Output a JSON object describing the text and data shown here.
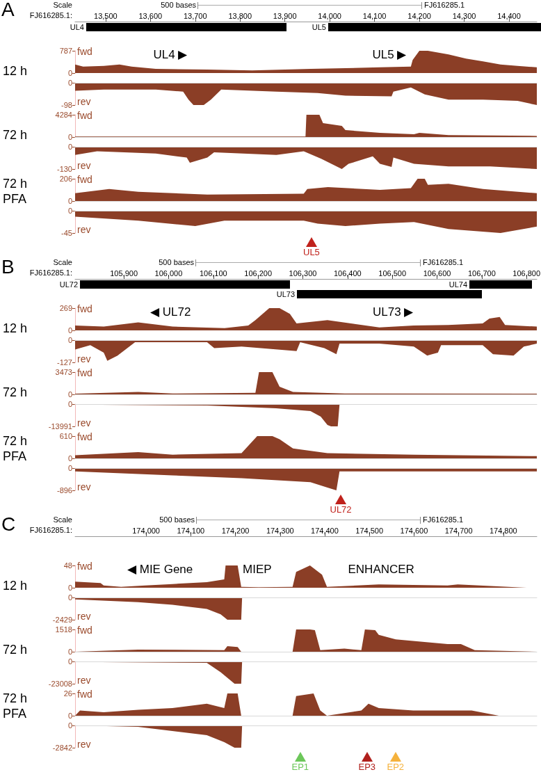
{
  "chart_data": [
    {
      "type": "area",
      "title": "12 h",
      "ylabel": "fwd",
      "color": "#8b3e26",
      "xlim": [
        13432,
        14462
      ],
      "xticks": [
        {
          "value": 13500,
          "label": "13,500"
        },
        {
          "value": 13600,
          "label": "13,600"
        },
        {
          "value": 13700,
          "label": "13,700"
        },
        {
          "value": 13800,
          "label": "13,800"
        },
        {
          "value": 13900,
          "label": "13,900"
        },
        {
          "value": 14000,
          "label": "14,000"
        },
        {
          "value": 14100,
          "label": "14,100"
        },
        {
          "value": 14200,
          "label": "14,200"
        },
        {
          "value": 14300,
          "label": "14,300"
        },
        {
          "value": 14400,
          "label": "14,400"
        }
      ],
      "ylim": [
        0,
        787
      ],
      "yticks": [
        0,
        787
      ],
      "annotations": [
        "A",
        "Scale",
        "500 bases",
        "FJ616285.1",
        "FJ616285.1:",
        "UL4",
        "UL5",
        "UL4 ▶",
        "UL5 ▶"
      ],
      "x": [
        13432,
        13450,
        13496,
        13531,
        13558,
        13612,
        13727,
        13827,
        13958,
        14035,
        14112,
        14181,
        14185,
        14200,
        14208,
        14219,
        14265,
        14304,
        14342,
        14381,
        14419,
        14462
      ],
      "values": [
        300,
        225,
        255,
        300,
        225,
        150,
        120,
        90,
        150,
        170,
        200,
        225,
        460,
        787,
        787,
        787,
        660,
        510,
        410,
        300,
        255,
        200
      ]
    },
    {
      "type": "area",
      "ylabel": "rev",
      "color": "#8b3e26",
      "xlim": [
        13432,
        14462
      ],
      "ylim": [
        -98,
        0
      ],
      "yticks": [
        0,
        -98
      ],
      "tick_labels": "y",
      "x": [
        13432,
        13496,
        13612,
        13673,
        13685,
        13696,
        13719,
        13735,
        13758,
        13881,
        13973,
        14035,
        14138,
        14142,
        14181,
        14212,
        14265,
        14342,
        14419,
        14462
      ],
      "values": [
        -35,
        -30,
        -30,
        -39,
        -74,
        -98,
        -98,
        -74,
        -30,
        -39,
        -45,
        -57,
        -60,
        -39,
        -21,
        -51,
        -74,
        -74,
        -80,
        -98
      ]
    },
    {
      "type": "area",
      "title": "72 h",
      "ylabel": "fwd",
      "color": "#8b3e26",
      "xlim": [
        13432,
        14462
      ],
      "ylim": [
        0,
        4284
      ],
      "yticks": [
        0,
        4284
      ],
      "tick_labels": "y",
      "x": [
        13432,
        13881,
        13946,
        13948,
        13977,
        13985,
        14027,
        14035,
        14112,
        14188,
        14200,
        14265,
        14462
      ],
      "values": [
        100,
        100,
        100,
        4284,
        4284,
        2680,
        2140,
        1340,
        800,
        540,
        800,
        375,
        215
      ]
    },
    {
      "type": "area",
      "ylabel": "rev",
      "color": "#8b3e26",
      "xlim": [
        13432,
        14462
      ],
      "ylim": [
        -130,
        0
      ],
      "yticks": [
        0,
        -130
      ],
      "tick_labels": "y",
      "x": [
        13432,
        13481,
        13612,
        13681,
        13688,
        13727,
        13742,
        13881,
        13942,
        13981,
        14027,
        14042,
        14096,
        14112,
        14138,
        14142,
        14188,
        14265,
        14358,
        14462
      ],
      "values": [
        -48,
        -26,
        -40,
        -63,
        -93,
        -63,
        -33,
        -48,
        -26,
        -70,
        -130,
        -100,
        -56,
        -100,
        -118,
        -63,
        -100,
        -115,
        -115,
        -130
      ]
    },
    {
      "type": "area",
      "title": "72 h PFA",
      "ylabel": "fwd",
      "color": "#8b3e26",
      "xlim": [
        13432,
        14462
      ],
      "ylim": [
        0,
        206
      ],
      "yticks": [
        0,
        206
      ],
      "tick_labels": "y",
      "x": [
        13432,
        13508,
        13573,
        13727,
        13942,
        13950,
        13996,
        14112,
        14181,
        14196,
        14212,
        14219,
        14265,
        14342,
        14462
      ],
      "values": [
        72,
        111,
        85,
        59,
        67,
        111,
        129,
        103,
        119,
        206,
        206,
        150,
        160,
        111,
        72
      ]
    },
    {
      "type": "area",
      "ylabel": "rev",
      "color": "#8b3e26",
      "xlim": [
        13432,
        14462
      ],
      "ylim": [
        -45,
        0
      ],
      "yticks": [
        0,
        -45
      ],
      "tick_labels": "y",
      "annotations": [
        "UL5"
      ],
      "x": [
        13432,
        13573,
        13700,
        13765,
        13942,
        13973,
        14035,
        14112,
        14188,
        14265,
        14381,
        14462
      ],
      "values": [
        -12,
        -20,
        -31,
        -20,
        -20,
        -26,
        -31,
        -26,
        -23,
        -37,
        -45,
        -32
      ]
    },
    {
      "type": "area",
      "title": "12 h",
      "ylabel": "fwd",
      "color": "#8b3e26",
      "xlim": [
        105791,
        106823
      ],
      "xticks": [
        {
          "value": 105900,
          "label": "105,900"
        },
        {
          "value": 106000,
          "label": "106,000"
        },
        {
          "value": 106100,
          "label": "106,100"
        },
        {
          "value": 106200,
          "label": "106,200"
        },
        {
          "value": 106300,
          "label": "106,300"
        },
        {
          "value": 106400,
          "label": "106,400"
        },
        {
          "value": 106500,
          "label": "106,500"
        },
        {
          "value": 106600,
          "label": "106,600"
        },
        {
          "value": 106700,
          "label": "106,700"
        },
        {
          "value": 106800,
          "label": "106,800"
        }
      ],
      "ylim": [
        0,
        269
      ],
      "yticks": [
        0,
        269
      ],
      "annotations": [
        "B",
        "Scale",
        "500 bases",
        "FJ616285.1",
        "FJ616285.1:",
        "UL72",
        "UL74",
        "UL73",
        "◀ UL72",
        "UL73 ▶"
      ],
      "x": [
        105791,
        105855,
        105932,
        106009,
        106125,
        106178,
        106194,
        106225,
        106248,
        106271,
        106286,
        106355,
        106471,
        106548,
        106625,
        106702,
        106717,
        106740,
        106752,
        106823
      ],
      "values": [
        58,
        46,
        96,
        46,
        27,
        58,
        123,
        269,
        269,
        200,
        84,
        123,
        35,
        58,
        65,
        84,
        142,
        161,
        65,
        46
      ]
    },
    {
      "type": "area",
      "ylabel": "rev",
      "color": "#8b3e26",
      "xlim": [
        105791,
        106823
      ],
      "ylim": [
        -127,
        0
      ],
      "yticks": [
        0,
        -127
      ],
      "tick_labels": "y",
      "x": [
        105791,
        105825,
        105855,
        105863,
        105886,
        105925,
        106086,
        106102,
        106163,
        106286,
        106294,
        106348,
        106375,
        106382,
        106471,
        106548,
        106578,
        106602,
        106609,
        106702,
        106725,
        106771,
        106794,
        106823
      ],
      "values": [
        -54,
        -29,
        -71,
        -118,
        -88,
        -12,
        -12,
        -46,
        -37,
        -63,
        -12,
        -46,
        -80,
        -20,
        -20,
        -37,
        -88,
        -71,
        -29,
        -29,
        -80,
        -88,
        -37,
        -20
      ]
    },
    {
      "type": "area",
      "title": "72 h",
      "ylabel": "fwd",
      "color": "#8b3e26",
      "xlim": [
        105791,
        106823
      ],
      "ylim": [
        0,
        3473
      ],
      "yticks": [
        0,
        3473
      ],
      "tick_labels": "y",
      "x": [
        105791,
        105932,
        106009,
        106194,
        106202,
        106232,
        106248,
        106278,
        106394,
        106823
      ],
      "values": [
        95,
        380,
        140,
        240,
        3473,
        3473,
        1190,
        380,
        140,
        95
      ]
    },
    {
      "type": "area",
      "ylabel": "rev",
      "color": "#8b3e26",
      "xlim": [
        105791,
        106823
      ],
      "ylim": [
        -13991,
        0
      ],
      "yticks": [
        0,
        -13991
      ],
      "tick_labels": "y",
      "x": [
        105791,
        106086,
        106240,
        106317,
        106340,
        106355,
        106363,
        106378,
        106382,
        106823
      ],
      "values": [
        -350,
        -875,
        -2620,
        -4370,
        -7870,
        -13120,
        -13991,
        -13991,
        -350,
        -100
      ]
    },
    {
      "type": "area",
      "title": "72 h PFA",
      "ylabel": "fwd",
      "color": "#8b3e26",
      "xlim": [
        105791,
        106823
      ],
      "ylim": [
        0,
        610
      ],
      "yticks": [
        0,
        610
      ],
      "tick_labels": "y",
      "x": [
        105791,
        105932,
        106009,
        106163,
        106198,
        106232,
        106248,
        106278,
        106355,
        106548,
        106823
      ],
      "values": [
        85,
        170,
        100,
        144,
        610,
        610,
        525,
        271,
        144,
        100,
        60
      ]
    },
    {
      "type": "area",
      "ylabel": "rev",
      "color": "#8b3e26",
      "xlim": [
        105791,
        106823
      ],
      "ylim": [
        -896,
        0
      ],
      "yticks": [
        0,
        -896
      ],
      "tick_labels": "y",
      "annotations": [
        "UL72"
      ],
      "x": [
        105791,
        106009,
        106163,
        106317,
        106355,
        106375,
        106382,
        106548,
        106823
      ],
      "values": [
        -130,
        -294,
        -403,
        -567,
        -785,
        -896,
        -130,
        -130,
        -130
      ]
    },
    {
      "type": "area",
      "title": "12 h",
      "ylabel": "fwd",
      "color": "#8b3e26",
      "xlim": [
        173841,
        174875
      ],
      "xticks": [
        {
          "value": 174000,
          "label": "174,000"
        },
        {
          "value": 174100,
          "label": "174,100"
        },
        {
          "value": 174200,
          "label": "174,200"
        },
        {
          "value": 174300,
          "label": "174,300"
        },
        {
          "value": 174400,
          "label": "174,400"
        },
        {
          "value": 174500,
          "label": "174,500"
        },
        {
          "value": 174600,
          "label": "174,600"
        },
        {
          "value": 174700,
          "label": "174,700"
        },
        {
          "value": 174800,
          "label": "174,800"
        }
      ],
      "ylim": [
        0,
        48
      ],
      "yticks": [
        0,
        48
      ],
      "annotations": [
        "C",
        "Scale",
        "500 bases",
        "FJ616285.1",
        "FJ616285.1:",
        "◀ MIE Gene",
        "MIEP",
        "ENHANCER"
      ],
      "x": [
        173841,
        173898,
        173905,
        173944,
        173998,
        174059,
        174136,
        174175,
        174178,
        174205,
        174213,
        174252,
        174328,
        174336,
        174367,
        174394,
        174405,
        174521,
        174675,
        174698,
        174852,
        174875
      ],
      "values": [
        13,
        10,
        5,
        2,
        5,
        8,
        12,
        18,
        48,
        48,
        2,
        1,
        2,
        34,
        48,
        28,
        2,
        7,
        5,
        7,
        0,
        0
      ]
    },
    {
      "type": "area",
      "ylabel": "rev",
      "color": "#8b3e26",
      "xlim": [
        173841,
        174875
      ],
      "ylim": [
        -2429,
        0
      ],
      "yticks": [
        0,
        -2429
      ],
      "tick_labels": "y",
      "x": [
        173841,
        173982,
        174059,
        174136,
        174167,
        174182,
        174213,
        174215,
        174875
      ],
      "values": [
        -207,
        -503,
        -800,
        -1243,
        -1835,
        -2429,
        -2429,
        0,
        0
      ]
    },
    {
      "type": "area",
      "title": "72 h",
      "ylabel": "fwd",
      "color": "#8b3e26",
      "xlim": [
        173841,
        174875
      ],
      "ylim": [
        0,
        1518
      ],
      "yticks": [
        0,
        1518
      ],
      "tick_labels": "y",
      "x": [
        173841,
        173982,
        174175,
        174182,
        174205,
        174213,
        174328,
        174336,
        174367,
        174378,
        174390,
        174444,
        174482,
        174490,
        174513,
        174521,
        174559,
        174675,
        174705,
        174736,
        174875
      ],
      "values": [
        0,
        147,
        105,
        378,
        315,
        0,
        0,
        1518,
        1518,
        1470,
        105,
        210,
        105,
        1518,
        1470,
        1155,
        840,
        525,
        525,
        105,
        0
      ]
    },
    {
      "type": "area",
      "ylabel": "rev",
      "color": "#8b3e26",
      "xlim": [
        173841,
        174875
      ],
      "ylim": [
        -23008,
        0
      ],
      "yticks": [
        0,
        -23008
      ],
      "tick_labels": "y",
      "x": [
        173841,
        174136,
        174167,
        174198,
        174213,
        174215,
        174875
      ],
      "values": [
        -600,
        -1500,
        -11060,
        -23008,
        -23008,
        0,
        0
      ]
    },
    {
      "type": "area",
      "title": "72 h PFA",
      "ylabel": "fwd",
      "color": "#8b3e26",
      "xlim": [
        173841,
        174875
      ],
      "ylim": [
        0,
        26
      ],
      "yticks": [
        0,
        26
      ],
      "tick_labels": "y",
      "x": [
        173841,
        173852,
        173905,
        173982,
        174059,
        174136,
        174175,
        174182,
        174205,
        174213,
        174267,
        174328,
        174336,
        174375,
        174390,
        174405,
        174482,
        174498,
        174521,
        174598,
        174729,
        174790,
        174875
      ],
      "values": [
        0,
        6,
        4,
        7,
        9,
        14,
        9,
        26,
        26,
        0,
        0,
        0,
        23,
        26,
        6,
        0,
        6,
        14,
        9,
        6,
        6,
        0,
        0
      ]
    },
    {
      "type": "area",
      "ylabel": "rev",
      "color": "#8b3e26",
      "xlim": [
        173841,
        174875
      ],
      "ylim": [
        -2842,
        0
      ],
      "yticks": [
        0,
        -2842
      ],
      "tick_labels": "y",
      "annotations": [
        "EP1",
        "EP3",
        "EP2"
      ],
      "x": [
        173841,
        173982,
        174136,
        174175,
        174198,
        174213,
        174215,
        174875
      ],
      "values": [
        0,
        -180,
        -1240,
        -2130,
        -2842,
        -2842,
        0,
        0
      ]
    }
  ]
}
